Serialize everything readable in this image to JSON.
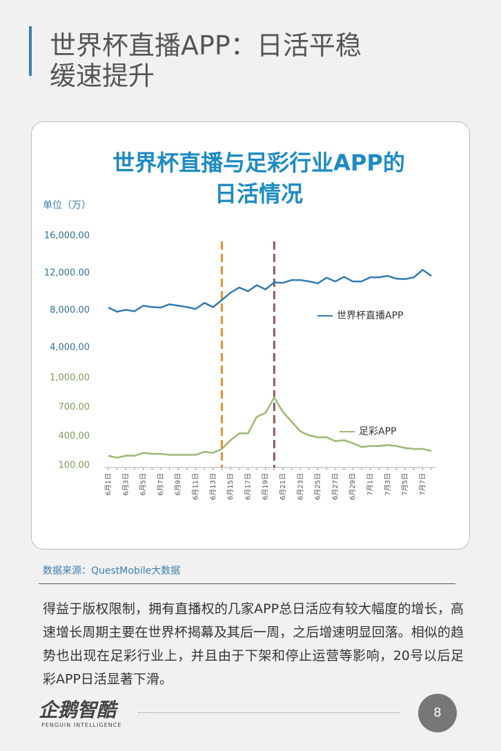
{
  "header": {
    "title_lines": [
      "世界杯直播APP：日活平稳",
      "缓速提升"
    ]
  },
  "chart_data": {
    "type": "line",
    "title_lines": [
      "世界杯直播与足彩行业APP的",
      "日活情况"
    ],
    "unit_label": "单位（万）",
    "categories": [
      "6月1日",
      null,
      "6月3日",
      null,
      "6月5日",
      null,
      "6月7日",
      null,
      "6月9日",
      null,
      "6月11日",
      null,
      "6月13日",
      null,
      "6月15日",
      null,
      "6月17日",
      null,
      "6月19日",
      null,
      "6月21日",
      null,
      "6月23日",
      null,
      "6月25日",
      null,
      "6月27日",
      null,
      "6月29日",
      null,
      "7月1日",
      null,
      "7月3日",
      null,
      "7月5日",
      null,
      "7月7日",
      null
    ],
    "series": [
      {
        "name": "世界杯直播APP",
        "color": "#2f7ab0",
        "axis": "y",
        "values": [
          8300,
          7850,
          8050,
          7900,
          8500,
          8350,
          8300,
          8650,
          8500,
          8350,
          8150,
          8800,
          8350,
          9100,
          9900,
          10450,
          10050,
          10700,
          10250,
          11000,
          10950,
          11250,
          11250,
          11100,
          10900,
          11500,
          11100,
          11600,
          11100,
          11100,
          11550,
          11550,
          11700,
          11400,
          11350,
          11550,
          12350,
          11700
        ]
      },
      {
        "name": "足彩APP",
        "color": "#9bb870",
        "axis": "y2",
        "values": [
          200,
          180,
          200,
          200,
          230,
          220,
          220,
          210,
          210,
          210,
          210,
          240,
          230,
          270,
          360,
          430,
          430,
          600,
          640,
          800,
          650,
          550,
          450,
          410,
          390,
          390,
          350,
          360,
          330,
          290,
          300,
          300,
          310,
          300,
          280,
          270,
          270,
          250
        ]
      }
    ],
    "ylim": [
      4000,
      16000
    ],
    "yticks": [
      {
        "value": 16000,
        "label": "16,000.00"
      },
      {
        "value": 12000,
        "label": "12,000.00"
      },
      {
        "value": 8000,
        "label": "8,000.00"
      },
      {
        "value": 4000,
        "label": "4,000.00"
      }
    ],
    "y2lim": [
      100,
      1000
    ],
    "y2ticks": [
      {
        "value": 1000,
        "label": "1,000.00"
      },
      {
        "value": 700,
        "label": "700.00"
      },
      {
        "value": 400,
        "label": "400.00"
      },
      {
        "value": 100,
        "label": "100.00"
      }
    ],
    "vlines": [
      {
        "category": 13,
        "color": "#e8912e"
      },
      {
        "category": 19,
        "color": "#8b5a5a"
      }
    ]
  },
  "source": "数据来源：QuestMobile大数据",
  "paragraph": "得益于版权限制，拥有直播权的几家APP总日活应有较大幅度的增长，高速增长周期主要在世界杯揭幕及其后一周，之后增速明显回落。相似的趋势也出现在足彩行业上，并且由于下架和停止运营等影响，20号以后足彩APP日活显著下滑。",
  "footer": {
    "logo": "企鹅智酷",
    "logo_sub": "PENGUIN INTELLIGENCE",
    "page": "8"
  }
}
